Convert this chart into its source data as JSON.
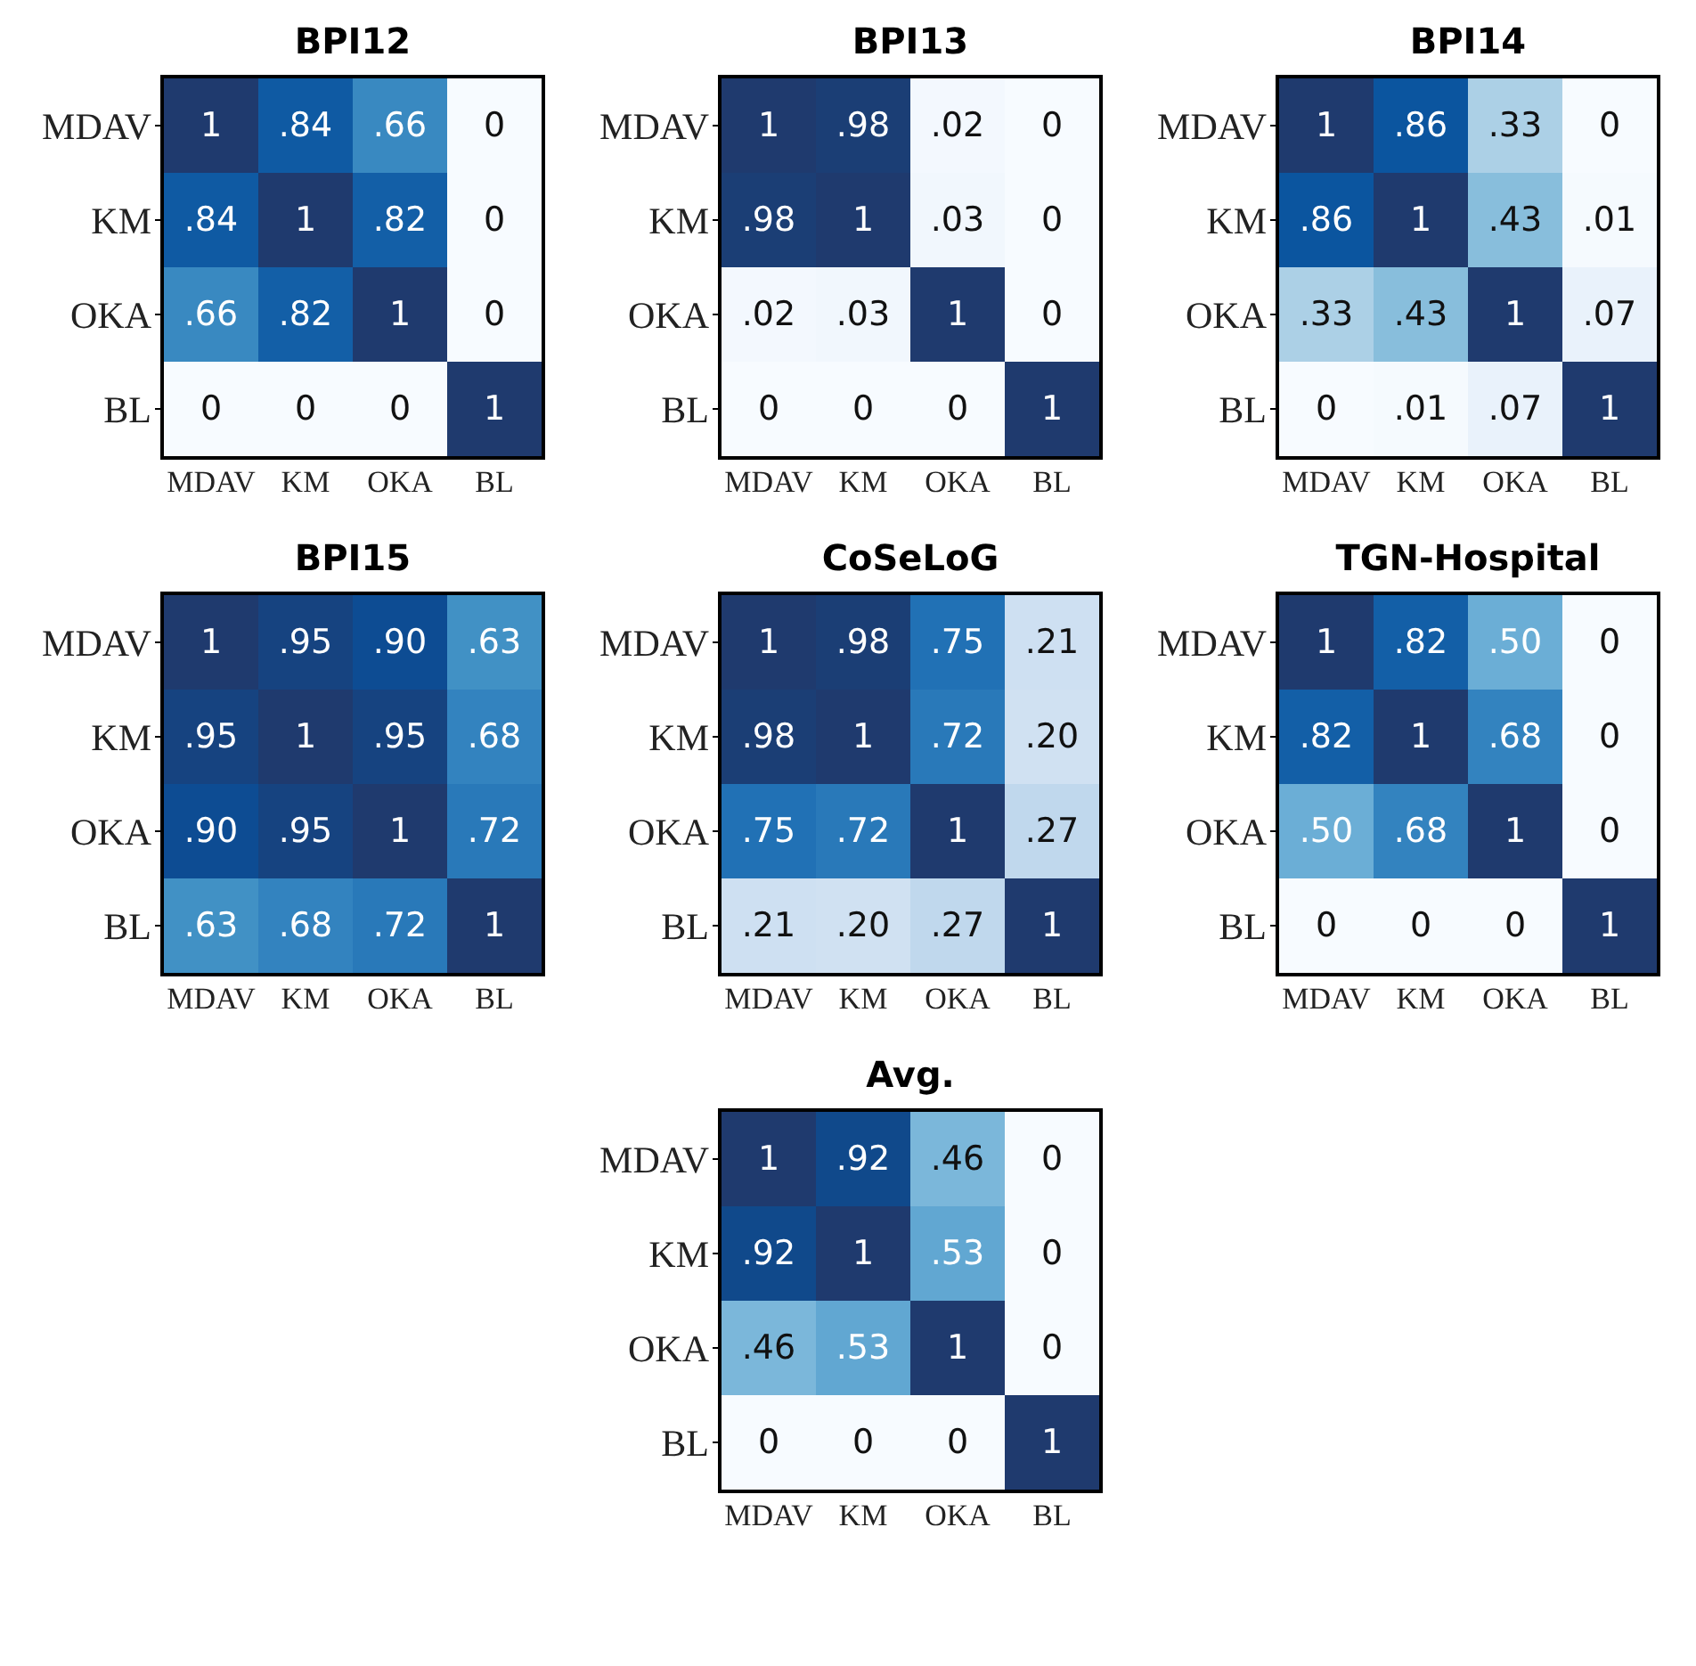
{
  "chart_data": [
    {
      "type": "heatmap",
      "title": "BPI12",
      "categories": [
        "MDAV",
        "KM",
        "OKA",
        "BL"
      ],
      "y_categories": [
        "MDAV",
        "KM",
        "OKA",
        "BL"
      ],
      "cells": [
        [
          1,
          0.84,
          0.66,
          0
        ],
        [
          0.84,
          1,
          0.82,
          0
        ],
        [
          0.66,
          0.82,
          1,
          0
        ],
        [
          0,
          0,
          0,
          1
        ]
      ],
      "cell_labels": [
        [
          "1",
          ".84",
          ".66",
          "0"
        ],
        [
          ".84",
          "1",
          ".82",
          "0"
        ],
        [
          ".66",
          ".82",
          "1",
          "0"
        ],
        [
          "0",
          "0",
          "0",
          "1"
        ]
      ]
    },
    {
      "type": "heatmap",
      "title": "BPI13",
      "categories": [
        "MDAV",
        "KM",
        "OKA",
        "BL"
      ],
      "y_categories": [
        "MDAV",
        "KM",
        "OKA",
        "BL"
      ],
      "cells": [
        [
          1,
          0.98,
          0.02,
          0
        ],
        [
          0.98,
          1,
          0.03,
          0
        ],
        [
          0.02,
          0.03,
          1,
          0
        ],
        [
          0,
          0,
          0,
          1
        ]
      ],
      "cell_labels": [
        [
          "1",
          ".98",
          ".02",
          "0"
        ],
        [
          ".98",
          "1",
          ".03",
          "0"
        ],
        [
          ".02",
          ".03",
          "1",
          "0"
        ],
        [
          "0",
          "0",
          "0",
          "1"
        ]
      ]
    },
    {
      "type": "heatmap",
      "title": "BPI14",
      "categories": [
        "MDAV",
        "KM",
        "OKA",
        "BL"
      ],
      "y_categories": [
        "MDAV",
        "KM",
        "OKA",
        "BL"
      ],
      "cells": [
        [
          1,
          0.86,
          0.33,
          0
        ],
        [
          0.86,
          1,
          0.43,
          0.01
        ],
        [
          0.33,
          0.43,
          1,
          0.07
        ],
        [
          0,
          0.01,
          0.07,
          1
        ]
      ],
      "cell_labels": [
        [
          "1",
          ".86",
          ".33",
          "0"
        ],
        [
          ".86",
          "1",
          ".43",
          ".01"
        ],
        [
          ".33",
          ".43",
          "1",
          ".07"
        ],
        [
          "0",
          ".01",
          ".07",
          "1"
        ]
      ]
    },
    {
      "type": "heatmap",
      "title": "BPI15",
      "categories": [
        "MDAV",
        "KM",
        "OKA",
        "BL"
      ],
      "y_categories": [
        "MDAV",
        "KM",
        "OKA",
        "BL"
      ],
      "cells": [
        [
          1,
          0.95,
          0.9,
          0.63
        ],
        [
          0.95,
          1,
          0.95,
          0.68
        ],
        [
          0.9,
          0.95,
          1,
          0.72
        ],
        [
          0.63,
          0.68,
          0.72,
          1
        ]
      ],
      "cell_labels": [
        [
          "1",
          ".95",
          ".90",
          ".63"
        ],
        [
          ".95",
          "1",
          ".95",
          ".68"
        ],
        [
          ".90",
          ".95",
          "1",
          ".72"
        ],
        [
          ".63",
          ".68",
          ".72",
          "1"
        ]
      ]
    },
    {
      "type": "heatmap",
      "title": "CoSeLoG",
      "categories": [
        "MDAV",
        "KM",
        "OKA",
        "BL"
      ],
      "y_categories": [
        "MDAV",
        "KM",
        "OKA",
        "BL"
      ],
      "cells": [
        [
          1,
          0.98,
          0.75,
          0.21
        ],
        [
          0.98,
          1,
          0.72,
          0.2
        ],
        [
          0.75,
          0.72,
          1,
          0.27
        ],
        [
          0.21,
          0.2,
          0.27,
          1
        ]
      ],
      "cell_labels": [
        [
          "1",
          ".98",
          ".75",
          ".21"
        ],
        [
          ".98",
          "1",
          ".72",
          ".20"
        ],
        [
          ".75",
          ".72",
          "1",
          ".27"
        ],
        [
          ".21",
          ".20",
          ".27",
          "1"
        ]
      ]
    },
    {
      "type": "heatmap",
      "title": "TGN-Hospital",
      "categories": [
        "MDAV",
        "KM",
        "OKA",
        "BL"
      ],
      "y_categories": [
        "MDAV",
        "KM",
        "OKA",
        "BL"
      ],
      "cells": [
        [
          1,
          0.82,
          0.5,
          0
        ],
        [
          0.82,
          1,
          0.68,
          0
        ],
        [
          0.5,
          0.68,
          1,
          0
        ],
        [
          0,
          0,
          0,
          1
        ]
      ],
      "cell_labels": [
        [
          "1",
          ".82",
          ".50",
          "0"
        ],
        [
          ".82",
          "1",
          ".68",
          "0"
        ],
        [
          ".50",
          ".68",
          "1",
          "0"
        ],
        [
          "0",
          "0",
          "0",
          "1"
        ]
      ]
    },
    {
      "type": "heatmap",
      "title": "Avg.",
      "categories": [
        "MDAV",
        "KM",
        "OKA",
        "BL"
      ],
      "y_categories": [
        "MDAV",
        "KM",
        "OKA",
        "BL"
      ],
      "cells": [
        [
          1,
          0.92,
          0.46,
          0
        ],
        [
          0.92,
          1,
          0.53,
          0
        ],
        [
          0.46,
          0.53,
          1,
          0
        ],
        [
          0,
          0,
          0,
          1
        ]
      ],
      "cell_labels": [
        [
          "1",
          ".92",
          ".46",
          "0"
        ],
        [
          ".92",
          "1",
          ".53",
          "0"
        ],
        [
          ".46",
          ".53",
          "1",
          "0"
        ],
        [
          "0",
          "0",
          "0",
          "1"
        ]
      ]
    }
  ]
}
